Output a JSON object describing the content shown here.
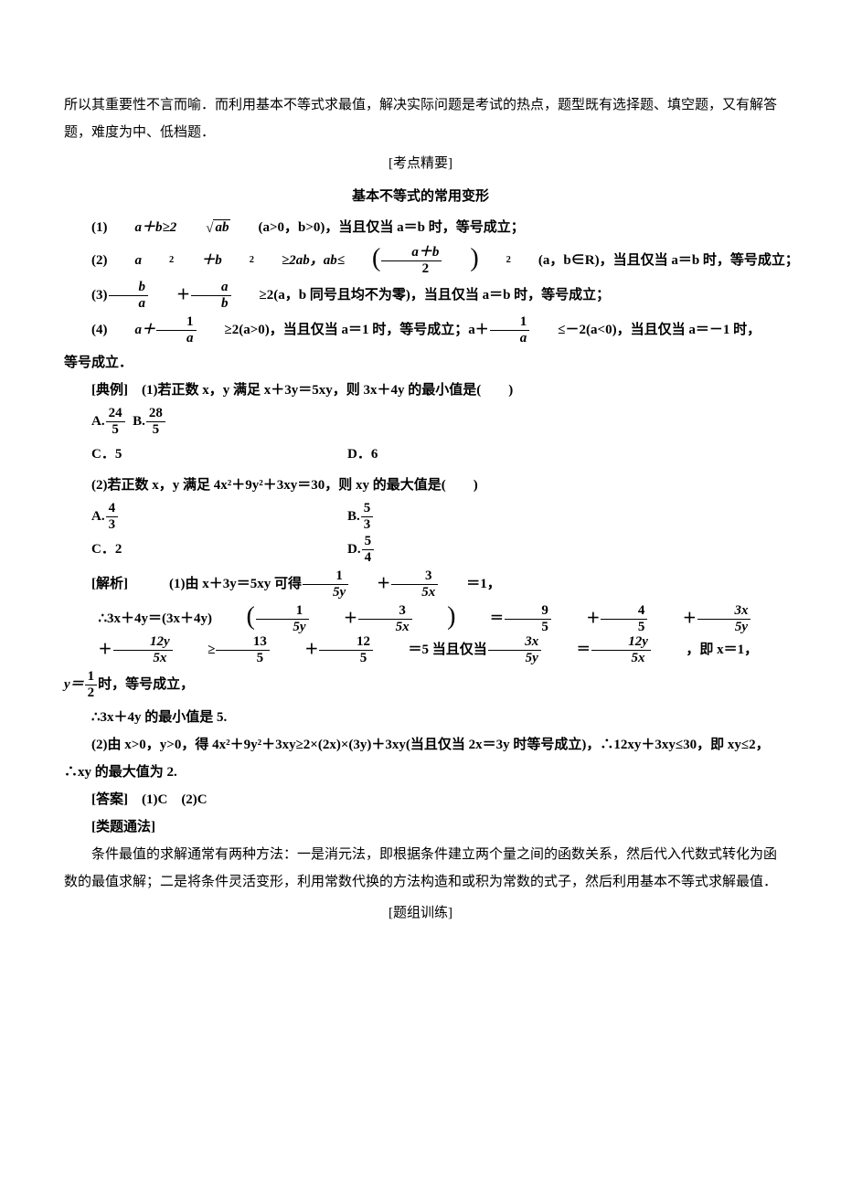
{
  "intro": "所以其重要性不言而喻．而利用基本不等式求最值，解决实际问题是考试的热点，题型既有选择题、填空题，又有解答题，难度为中、低档题．",
  "sec_points": "[考点精要]",
  "sec_title": "基本不等式的常用变形",
  "v1": {
    "pre": "(1)",
    "ab": "a＋b≥2",
    "rad": "ab",
    "cond": "(a>0，b>0)，当且仅当 a＝b 时，等号成立；"
  },
  "v2": {
    "pre": "(2)",
    "lhs1": "a",
    "lhs2": "＋b",
    "mid": "≥2ab，ab≤",
    "fnum": "a＋b",
    "fden": "2",
    "sq": "2",
    "cond": "(a，b∈R)，当且仅当 a＝b 时，等号成立；"
  },
  "v3": {
    "pre": "(3)",
    "f1n": "b",
    "f1d": "a",
    "plus": "＋",
    "f2n": "a",
    "f2d": "b",
    "mid": "≥2(a，b 同号且均不为零)，当且仅当 a＝b 时，等号成立；"
  },
  "v4": {
    "pre": "(4)",
    "a": "a＋",
    "f1n": "1",
    "f1d": "a",
    "m1": "≥2(a>0)，当且仅当 a＝1 时，等号成立；a＋",
    "f2n": "1",
    "f2d": "a",
    "m2": "≤－2(a<0)，当且仅当 a＝－1 时，"
  },
  "v4_tail": "等号成立．",
  "ex_label": "[典例]　",
  "q1": {
    "text": "(1)若正数 x，y 满足 x＋3y＝5xy，则 3x＋4y 的最小值是(　　)",
    "a_pre": "A.",
    "a_n": "24",
    "a_d": "5",
    "b_pre": "B.",
    "b_n": "28",
    "b_d": "5",
    "c": "C．5",
    "d": "D．6"
  },
  "q2": {
    "text": "(2)若正数 x，y 满足 4x²＋9y²＋3xy＝30，则 xy 的最大值是(　　)",
    "a_pre": "A.",
    "a_n": "4",
    "a_d": "3",
    "b_pre": "B.",
    "b_n": "5",
    "b_d": "3",
    "c": "C．2",
    "d_pre": "D.",
    "d_n": "5",
    "d_d": "4"
  },
  "sol_label": "[解析]　",
  "sol1_a": {
    "pre": "(1)由 x＋3y＝5xy 可得",
    "f1n": "1",
    "f1d": "5y",
    "plus": "＋",
    "f2n": "3",
    "f2d": "5x",
    "eq": "＝1，"
  },
  "sol1_b": {
    "pre": "∴3x＋4y＝(3x＋4y)",
    "p1n": "1",
    "p1d": "5y",
    "plus1": "＋",
    "p2n": "3",
    "p2d": "5x",
    "eq1": "＝",
    "t1n": "9",
    "t1d": "5",
    "pl2": "＋",
    "t2n": "4",
    "t2d": "5",
    "pl3": "＋",
    "t3n": "3x",
    "t3d": "5y",
    "pl4": "＋",
    "t4n": "12y",
    "t4d": "5x",
    "ge": "≥",
    "r1n": "13",
    "r1d": "5",
    "pl5": "＋",
    "r2n": "12",
    "r2d": "5",
    "eq2": "＝5 当且仅当",
    "e1n": "3x",
    "e1d": "5y",
    "eqe": "＝",
    "e2n": "12y",
    "e2d": "5x",
    "tail": "，即 x＝1，"
  },
  "sol1_c": {
    "pre": "y＝",
    "fn": "1",
    "fd": "2",
    "tail": "时，等号成立，"
  },
  "sol1_d": "∴3x＋4y 的最小值是 5.",
  "sol2": "(2)由 x>0，y>0，得 4x²＋9y²＋3xy≥2×(2x)×(3y)＋3xy(当且仅当 2x＝3y 时等号成立)，∴12xy＋3xy≤30，即 xy≤2，∴xy 的最大值为 2.",
  "answer": "[答案]　(1)C　(2)C",
  "method_label": "[类题通法]",
  "method": "条件最值的求解通常有两种方法：一是消元法，即根据条件建立两个量之间的函数关系，然后代入代数式转化为函数的最值求解；二是将条件灵活变形，利用常数代换的方法构造和或积为常数的式子，然后利用基本不等式求解最值．",
  "train_label": "[题组训练]"
}
